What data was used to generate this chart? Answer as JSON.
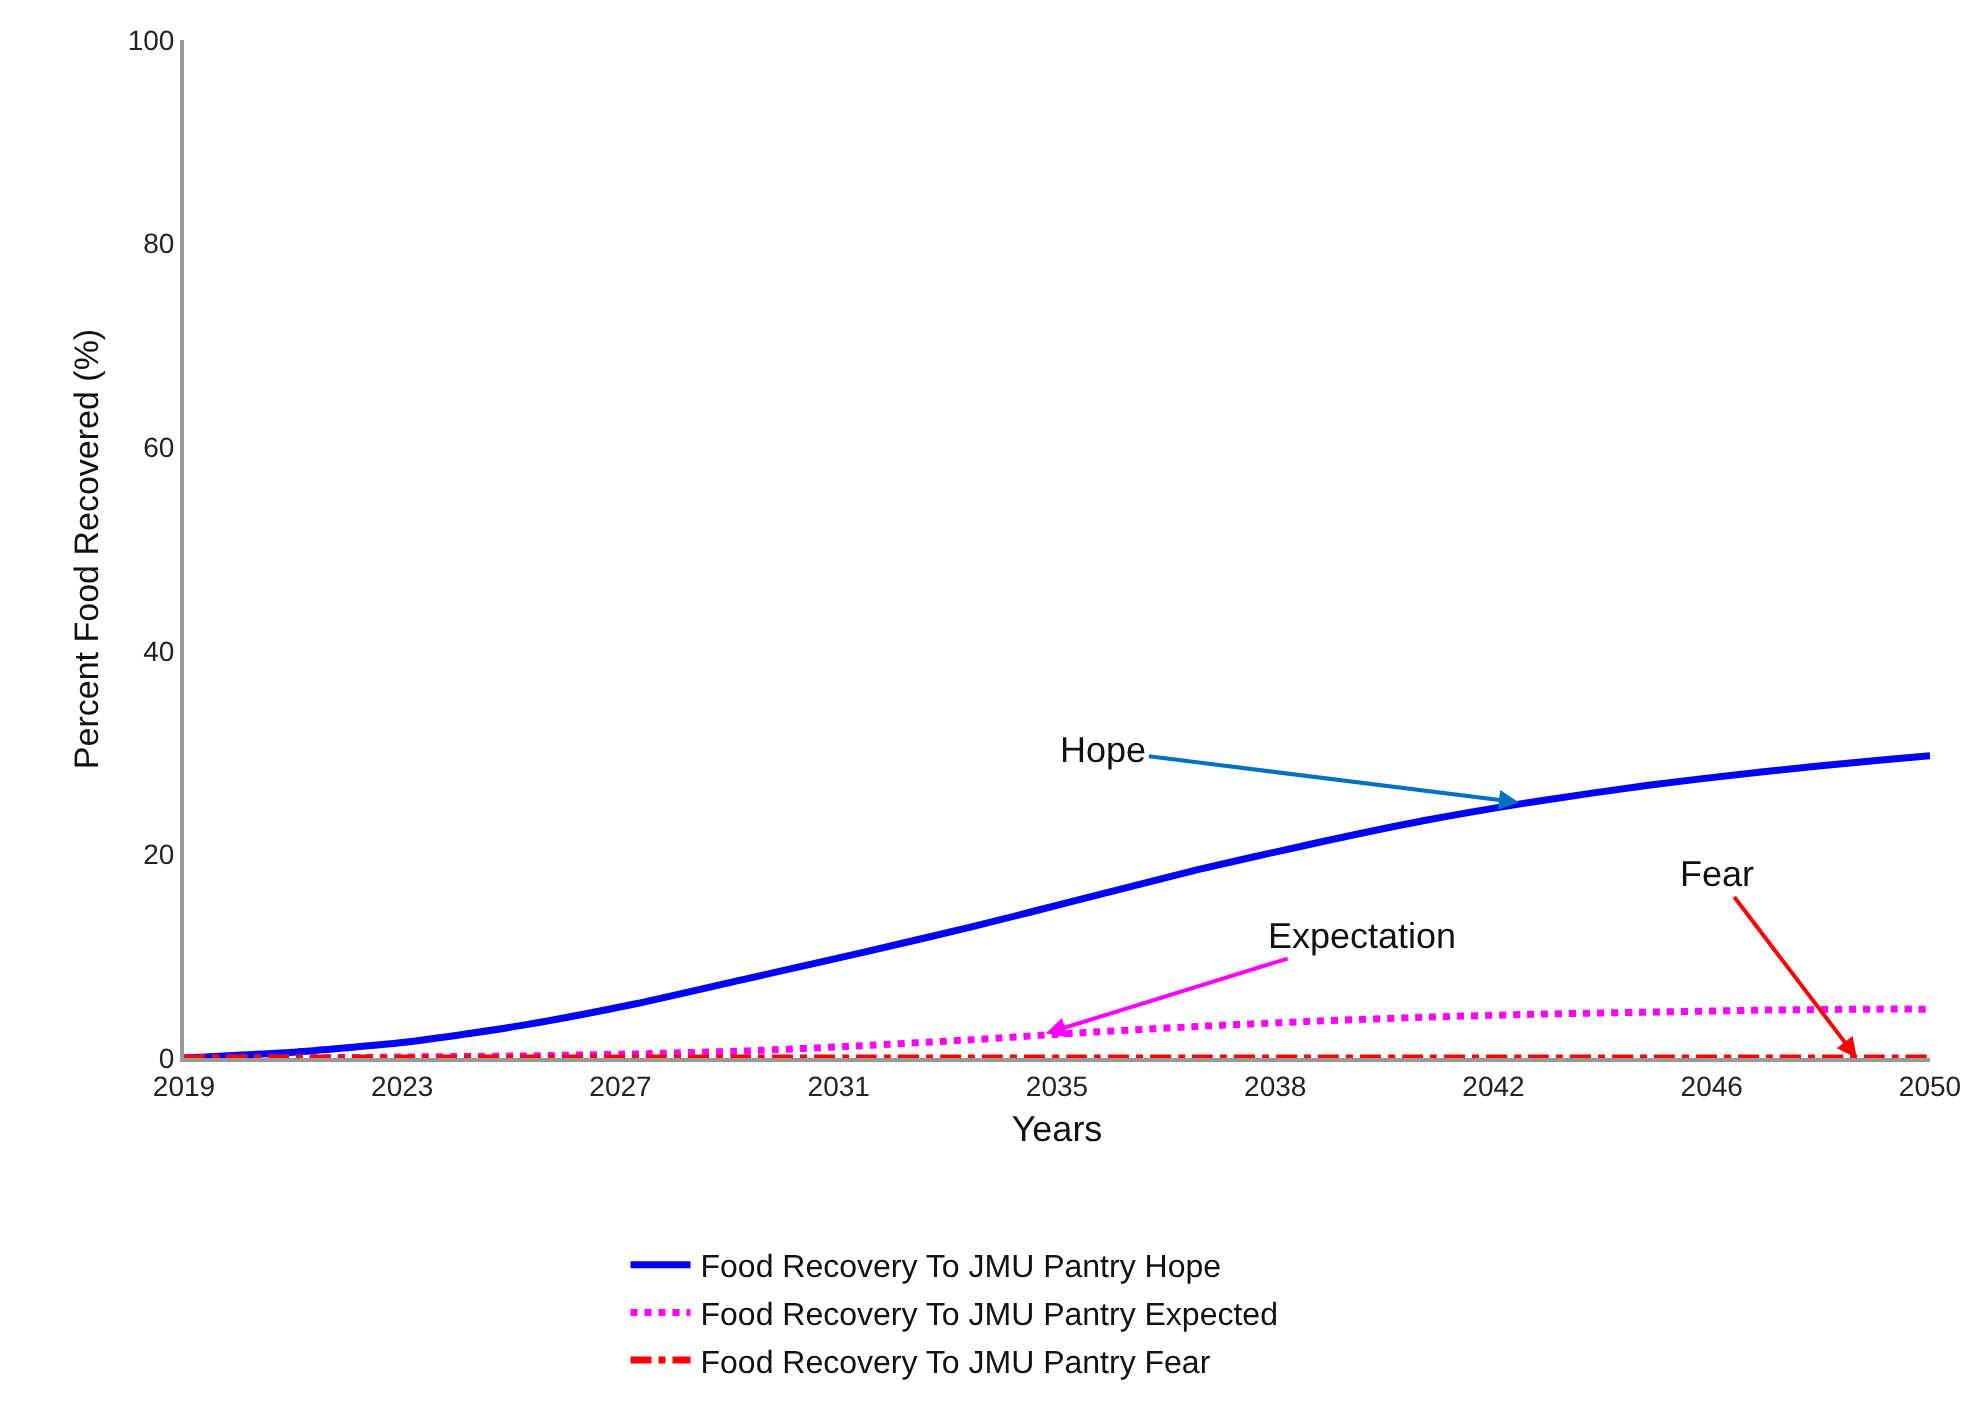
{
  "chart_data": {
    "type": "line",
    "xlabel": "Years",
    "ylabel": "Percent Food Recovered (%)",
    "x": [
      2019,
      2021,
      2023,
      2025,
      2027,
      2029,
      2031,
      2033,
      2035,
      2037,
      2039,
      2041,
      2043,
      2045,
      2047,
      2049,
      2050
    ],
    "series": [
      {
        "name": "Food Recovery To JMU Pantry Hope",
        "color": "#0000ff",
        "line_style": "solid",
        "values": [
          0,
          0.6,
          1.6,
          3.2,
          5.3,
          7.8,
          10.3,
          12.9,
          15.7,
          18.5,
          21,
          23.3,
          25.2,
          26.8,
          28.1,
          29.2,
          29.7
        ]
      },
      {
        "name": "Food Recovery To JMU Pantry Expected",
        "color": "#ff00ff",
        "line_style": "dotted",
        "values": [
          0,
          0,
          0.1,
          0.2,
          0.4,
          0.7,
          1.2,
          1.8,
          2.5,
          3.1,
          3.6,
          4.0,
          4.3,
          4.5,
          4.7,
          4.8,
          4.8
        ]
      },
      {
        "name": "Food Recovery To JMU Pantry Fear",
        "color": "#ff0000",
        "line_style": "dashdot",
        "values": [
          0,
          0,
          0,
          0,
          0,
          0,
          0,
          0,
          0,
          0,
          0,
          0,
          0,
          0,
          0,
          0,
          0
        ]
      }
    ],
    "xlim": [
      2019,
      2050
    ],
    "xticks": [
      2019,
      {
        "value": 2022.875,
        "label": "2023"
      },
      {
        "value": 2026.75,
        "label": "2027"
      },
      {
        "value": 2030.625,
        "label": "2031"
      },
      {
        "value": 2034.5,
        "label": "2035"
      },
      {
        "value": 2038.375,
        "label": "2038"
      },
      {
        "value": 2042.25,
        "label": "2042"
      },
      {
        "value": 2046.125,
        "label": "2046"
      },
      2050
    ],
    "ylim": [
      0,
      100
    ],
    "yticks": [
      0,
      20,
      40,
      60,
      80,
      100
    ],
    "legend": "bottom",
    "annotations": [
      {
        "text": "Hope",
        "x": 2042.7,
        "y": 25.1
      },
      {
        "text": "Expectation",
        "x": 2034.3,
        "y": 2.4
      },
      {
        "text": "Fear",
        "x": 2048.7,
        "y": 0
      }
    ]
  }
}
